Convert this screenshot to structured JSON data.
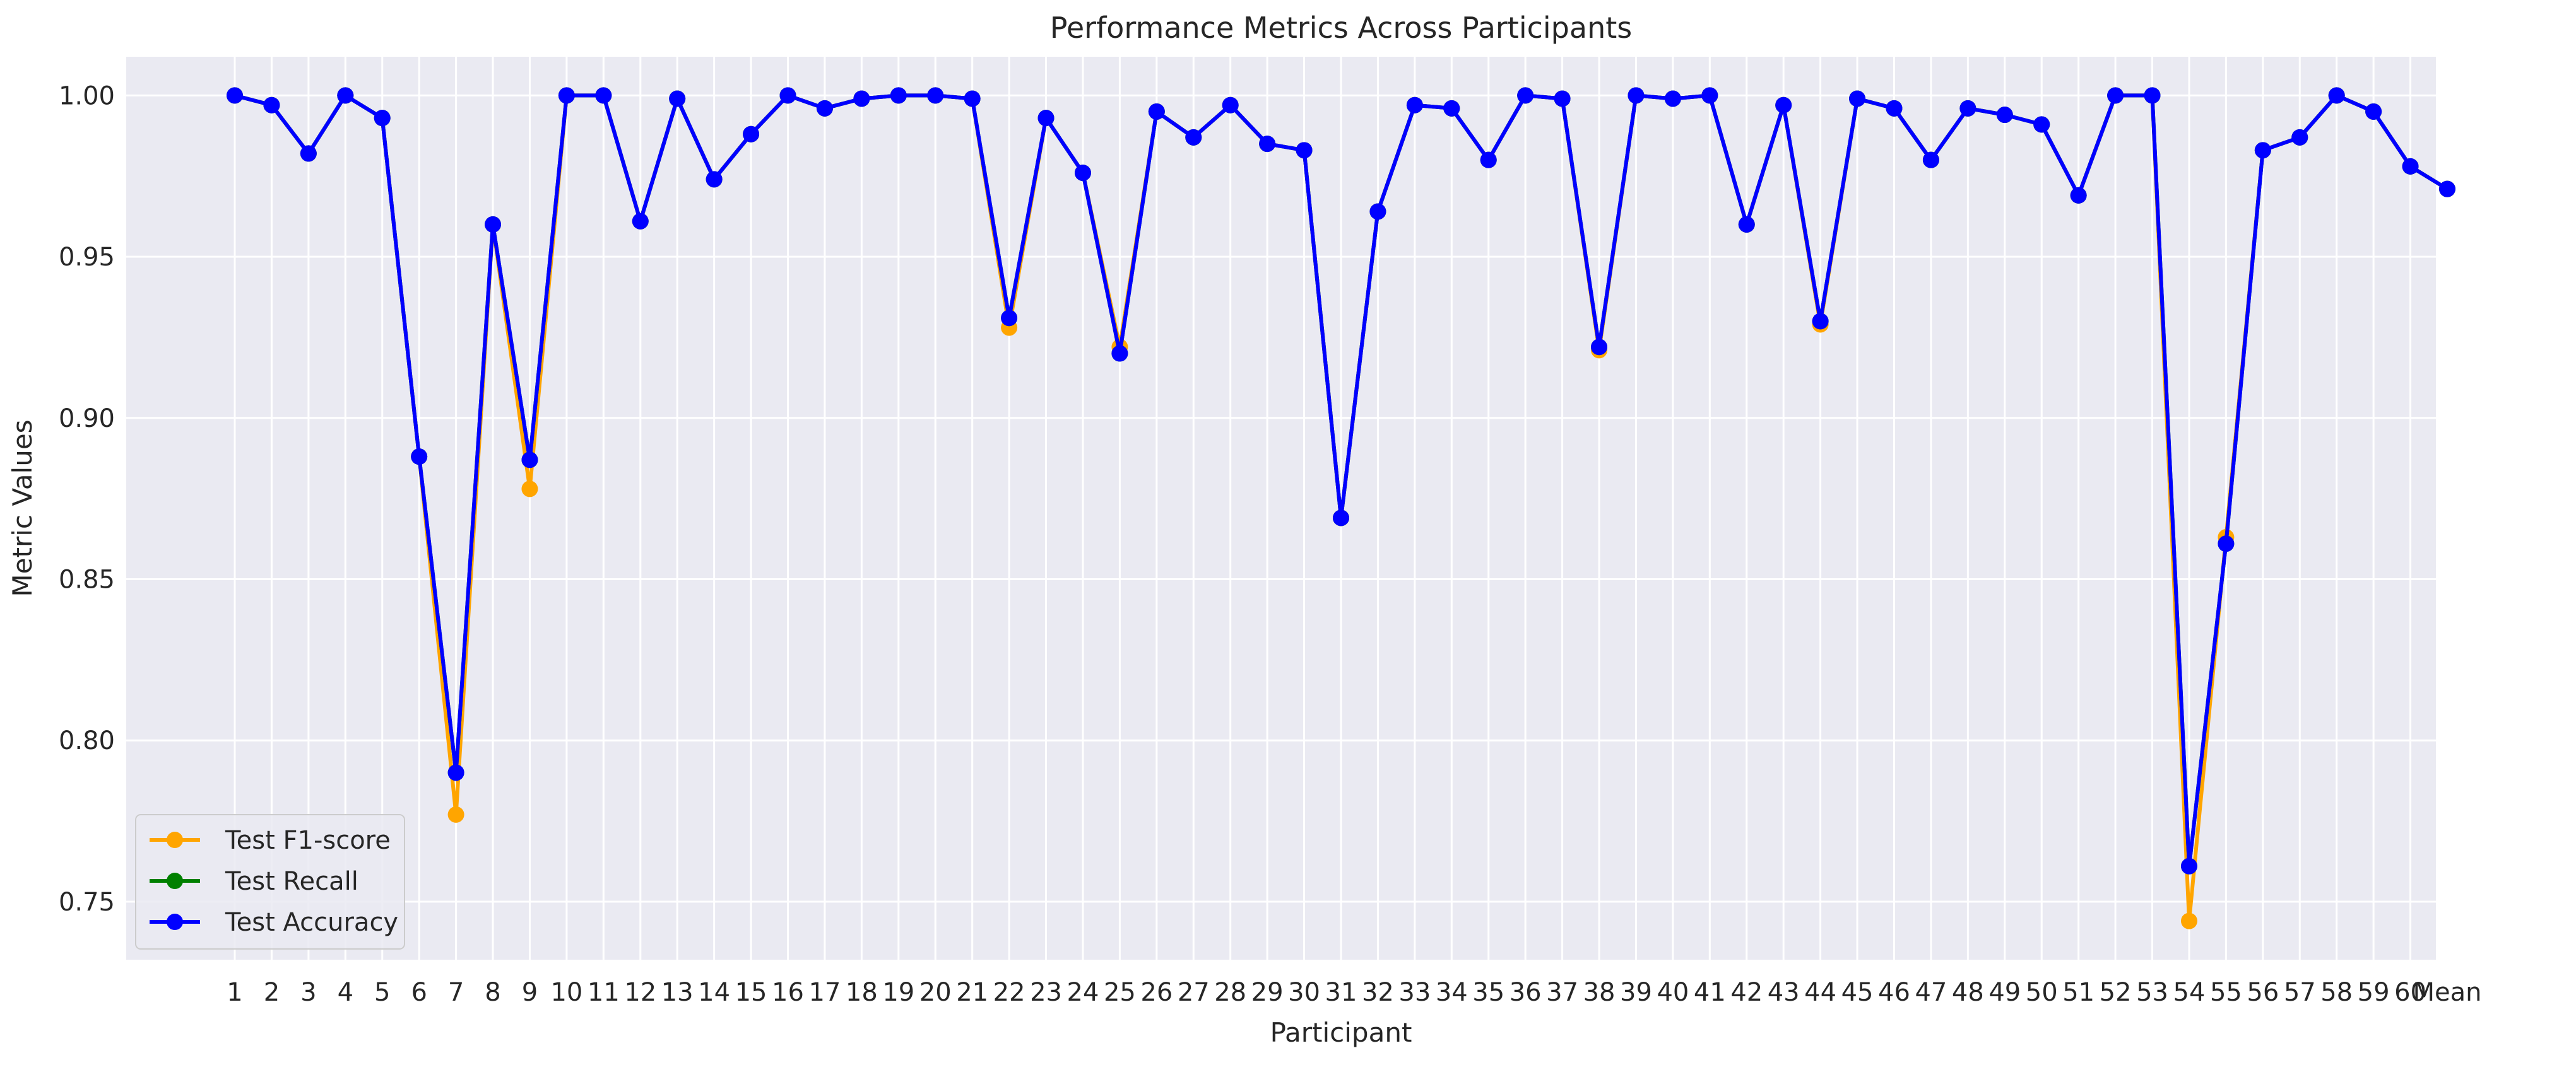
{
  "chart_data": {
    "type": "line",
    "title": "Performance Metrics Across Participants",
    "xlabel": "Participant",
    "ylabel": "Metric Values",
    "ylim": [
      0.732,
      1.012
    ],
    "yticks": [
      0.75,
      0.8,
      0.85,
      0.9,
      0.95,
      1.0
    ],
    "ytick_labels": [
      "0.75",
      "0.80",
      "0.85",
      "0.90",
      "0.95",
      "1.00"
    ],
    "grid": true,
    "legend_position": "lower-left",
    "categories": [
      "1",
      "2",
      "3",
      "4",
      "5",
      "6",
      "7",
      "8",
      "9",
      "10",
      "11",
      "12",
      "13",
      "14",
      "15",
      "16",
      "17",
      "18",
      "19",
      "20",
      "21",
      "22",
      "23",
      "24",
      "25",
      "26",
      "27",
      "28",
      "29",
      "30",
      "31",
      "32",
      "33",
      "34",
      "35",
      "36",
      "37",
      "38",
      "39",
      "40",
      "41",
      "42",
      "43",
      "44",
      "45",
      "46",
      "47",
      "48",
      "49",
      "50",
      "51",
      "52",
      "53",
      "54",
      "55",
      "56",
      "57",
      "58",
      "59",
      "60",
      "Mean"
    ],
    "series": [
      {
        "name": "Test F1-score",
        "color": "#ffa500",
        "values": [
          1.0,
          0.997,
          0.982,
          1.0,
          0.993,
          0.888,
          0.777,
          0.96,
          0.878,
          1.0,
          1.0,
          0.961,
          0.999,
          0.974,
          0.988,
          1.0,
          0.996,
          0.999,
          1.0,
          1.0,
          0.999,
          0.928,
          0.993,
          0.976,
          0.922,
          0.995,
          0.987,
          0.997,
          0.985,
          0.983,
          0.869,
          0.964,
          0.997,
          0.996,
          0.98,
          1.0,
          0.999,
          0.921,
          1.0,
          0.999,
          1.0,
          0.96,
          0.997,
          0.929,
          0.999,
          0.996,
          0.98,
          0.996,
          0.994,
          0.991,
          0.969,
          1.0,
          1.0,
          0.744,
          0.863,
          0.983,
          0.987,
          1.0,
          0.995,
          0.978,
          0.971
        ]
      },
      {
        "name": "Test Recall",
        "color": "#008000",
        "values": [
          1.0,
          0.997,
          0.982,
          1.0,
          0.993,
          0.888,
          0.79,
          0.96,
          0.887,
          1.0,
          1.0,
          0.961,
          0.999,
          0.974,
          0.988,
          1.0,
          0.996,
          0.999,
          1.0,
          1.0,
          0.999,
          0.931,
          0.993,
          0.976,
          0.92,
          0.995,
          0.987,
          0.997,
          0.985,
          0.983,
          0.869,
          0.964,
          0.997,
          0.996,
          0.98,
          1.0,
          0.999,
          0.922,
          1.0,
          0.999,
          1.0,
          0.96,
          0.997,
          0.93,
          0.999,
          0.996,
          0.98,
          0.996,
          0.994,
          0.991,
          0.969,
          1.0,
          1.0,
          0.761,
          0.861,
          0.983,
          0.987,
          1.0,
          0.995,
          0.978,
          0.971
        ]
      },
      {
        "name": "Test Accuracy",
        "color": "#0000ff",
        "values": [
          1.0,
          0.997,
          0.982,
          1.0,
          0.993,
          0.888,
          0.79,
          0.96,
          0.887,
          1.0,
          1.0,
          0.961,
          0.999,
          0.974,
          0.988,
          1.0,
          0.996,
          0.999,
          1.0,
          1.0,
          0.999,
          0.931,
          0.993,
          0.976,
          0.92,
          0.995,
          0.987,
          0.997,
          0.985,
          0.983,
          0.869,
          0.964,
          0.997,
          0.996,
          0.98,
          1.0,
          0.999,
          0.922,
          1.0,
          0.999,
          1.0,
          0.96,
          0.997,
          0.93,
          0.999,
          0.996,
          0.98,
          0.996,
          0.994,
          0.991,
          0.969,
          1.0,
          1.0,
          0.761,
          0.861,
          0.983,
          0.987,
          1.0,
          0.995,
          0.978,
          0.971
        ]
      }
    ]
  }
}
